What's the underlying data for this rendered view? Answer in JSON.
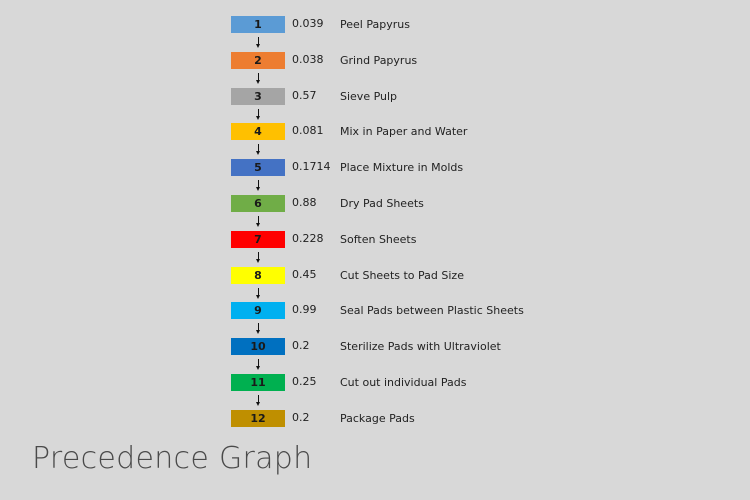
{
  "title": "Precedence Graph",
  "steps": [
    {
      "id": "1",
      "time": "0.039",
      "task": "Peel Papyrus",
      "color": "#5b9bd5"
    },
    {
      "id": "2",
      "time": "0.038",
      "task": "Grind Papyrus",
      "color": "#ed7d31"
    },
    {
      "id": "3",
      "time": "0.57",
      "task": "Sieve Pulp",
      "color": "#a5a5a5"
    },
    {
      "id": "4",
      "time": "0.081",
      "task": "Mix in Paper and Water",
      "color": "#ffc000"
    },
    {
      "id": "5",
      "time": "0.1714",
      "task": "Place Mixture in Molds",
      "color": "#4472c4"
    },
    {
      "id": "6",
      "time": "0.88",
      "task": "Dry Pad Sheets",
      "color": "#70ad47"
    },
    {
      "id": "7",
      "time": "0.228",
      "task": "Soften Sheets",
      "color": "#ff0000"
    },
    {
      "id": "8",
      "time": "0.45",
      "task": "Cut Sheets to Pad Size",
      "color": "#ffff00"
    },
    {
      "id": "9",
      "time": "0.99",
      "task": "Seal Pads between Plastic Sheets",
      "color": "#00b0f0"
    },
    {
      "id": "10",
      "time": "0.2",
      "task": "Sterilize Pads with Ultraviolet",
      "color": "#0070c0"
    },
    {
      "id": "11",
      "time": "0.25",
      "task": "Cut out individual Pads",
      "color": "#00b050"
    },
    {
      "id": "12",
      "time": "0.2",
      "task": "Package Pads",
      "color": "#bf8f00"
    }
  ]
}
